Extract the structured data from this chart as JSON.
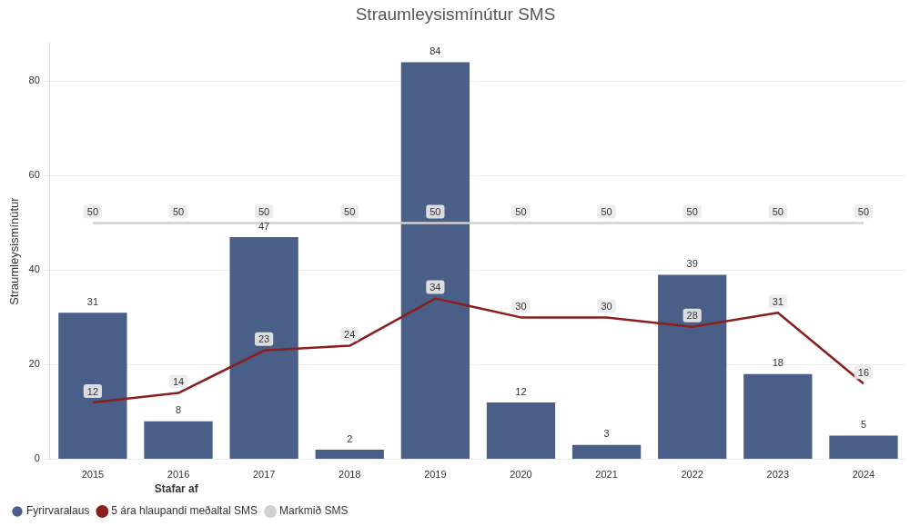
{
  "chart_data": {
    "type": "bar",
    "title": "Straumleysismínútur SMS",
    "ylabel": "Straumleysismínútur",
    "legend_title": "Stafar af",
    "categories": [
      "2015",
      "2016",
      "2017",
      "2018",
      "2019",
      "2020",
      "2021",
      "2022",
      "2023",
      "2024"
    ],
    "series": [
      {
        "name": "Fyrirvaralaus",
        "color": "#4a5f87",
        "values": [
          31,
          8,
          47,
          2,
          84,
          12,
          3,
          39,
          18,
          5
        ]
      },
      {
        "name": "5 ára hlaupandi meðaltal SMS",
        "type": "line",
        "color": "#8b1e1e",
        "values": [
          12,
          14,
          23,
          24,
          34,
          30,
          30,
          28,
          31,
          16
        ]
      },
      {
        "name": "Markmið SMS",
        "type": "line",
        "color": "#d0d0d0",
        "values": [
          50,
          50,
          50,
          50,
          50,
          50,
          50,
          50,
          50,
          50
        ]
      }
    ],
    "ylim": [
      0,
      88
    ],
    "yticks": [
      0,
      20,
      40,
      60,
      80
    ],
    "grid": "y",
    "legend": "bottom",
    "marker": "none",
    "line_style": "solid",
    "data_labels": true
  }
}
